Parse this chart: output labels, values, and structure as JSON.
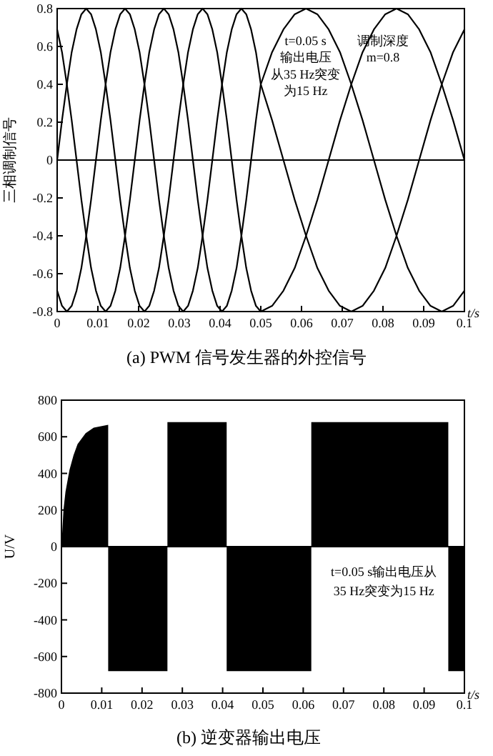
{
  "chart_data": [
    {
      "type": "line",
      "title": "(a)  PWM 信号发生器的外控信号",
      "ylabel": "三相调制信号",
      "xlabel": "t/s",
      "annotations": [
        "t=0.05 s",
        "输出电压",
        "从35 Hz突变",
        "为15 Hz",
        "调制深度",
        "m=0.8"
      ],
      "x": [
        0,
        0.00119,
        0.00238,
        0.00357,
        0.00476,
        0.00595,
        0.00714,
        0.00833,
        0.00952,
        0.01071,
        0.0119,
        0.0131,
        0.01429,
        0.01548,
        0.01667,
        0.01786,
        0.01905,
        0.02024,
        0.02143,
        0.02262,
        0.02381,
        0.025,
        0.02619,
        0.02738,
        0.02857,
        0.02976,
        0.03095,
        0.03214,
        0.03333,
        0.03452,
        0.03571,
        0.0369,
        0.0381,
        0.03929,
        0.04048,
        0.04167,
        0.04286,
        0.04405,
        0.04524,
        0.04643,
        0.04762,
        0.04881,
        0.05,
        0.05278,
        0.05556,
        0.05833,
        0.06111,
        0.06389,
        0.06667,
        0.06944,
        0.07222,
        0.075,
        0.07778,
        0.08056,
        0.08333,
        0.08611,
        0.08889,
        0.09167,
        0.09444,
        0.09722,
        0.1
      ],
      "series": [
        {
          "color": "#000000",
          "values": [
            0,
            0.21,
            0.4,
            0.57,
            0.69,
            0.77,
            0.8,
            0.77,
            0.69,
            0.57,
            0.4,
            0.21,
            0,
            -0.21,
            -0.4,
            -0.57,
            -0.69,
            -0.77,
            -0.8,
            -0.77,
            -0.69,
            -0.57,
            -0.4,
            -0.21,
            0,
            0.21,
            0.4,
            0.57,
            0.69,
            0.77,
            0.8,
            0.77,
            0.69,
            0.57,
            0.4,
            0.21,
            0,
            -0.21,
            -0.4,
            -0.57,
            -0.69,
            -0.77,
            -0.8,
            -0.77,
            -0.69,
            -0.57,
            -0.4,
            -0.21,
            0,
            0.21,
            0.4,
            0.57,
            0.69,
            0.77,
            0.8,
            0.77,
            0.69,
            0.57,
            0.4,
            0.21,
            0
          ]
        },
        {
          "color": "#000000",
          "values": [
            -0.69,
            -0.77,
            -0.8,
            -0.77,
            -0.69,
            -0.57,
            -0.4,
            -0.21,
            0,
            0.21,
            0.4,
            0.57,
            0.69,
            0.77,
            0.8,
            0.77,
            0.69,
            0.57,
            0.4,
            0.21,
            0,
            -0.21,
            -0.4,
            -0.57,
            -0.69,
            -0.77,
            -0.8,
            -0.77,
            -0.69,
            -0.57,
            -0.4,
            -0.21,
            0,
            0.21,
            0.4,
            0.57,
            0.69,
            0.77,
            0.8,
            0.77,
            0.69,
            0.57,
            0.4,
            0.21,
            0,
            -0.21,
            -0.4,
            -0.57,
            -0.69,
            -0.77,
            -0.8,
            -0.77,
            -0.69,
            -0.57,
            -0.4,
            -0.21,
            0,
            0.21,
            0.4,
            0.57,
            0.69
          ]
        },
        {
          "color": "#000000",
          "values": [
            0.69,
            0.57,
            0.4,
            0.21,
            0,
            -0.21,
            -0.4,
            -0.57,
            -0.69,
            -0.77,
            -0.8,
            -0.77,
            -0.69,
            -0.57,
            -0.4,
            -0.21,
            0,
            0.21,
            0.4,
            0.57,
            0.69,
            0.77,
            0.8,
            0.77,
            0.69,
            0.57,
            0.4,
            0.21,
            0,
            -0.21,
            -0.4,
            -0.57,
            -0.69,
            -0.77,
            -0.8,
            -0.77,
            -0.69,
            -0.57,
            -0.4,
            -0.21,
            0,
            0.21,
            0.4,
            0.57,
            0.69,
            0.77,
            0.8,
            0.77,
            0.69,
            0.57,
            0.4,
            0.21,
            0,
            -0.21,
            -0.4,
            -0.57,
            -0.69,
            -0.77,
            -0.8,
            -0.77,
            -0.69
          ]
        }
      ],
      "xlim": [
        0,
        0.1
      ],
      "xticks": [
        0,
        0.01,
        0.02,
        0.03,
        0.04,
        0.05,
        0.06,
        0.07,
        0.08,
        0.09,
        0.1
      ],
      "ylim": [
        -0.8,
        0.8
      ],
      "yticks": [
        -0.8,
        -0.6,
        -0.4,
        -0.2,
        0,
        0.2,
        0.4,
        0.6,
        0.8
      ],
      "ref_lines": [
        {
          "axis": "y",
          "value": 0
        }
      ]
    },
    {
      "type": "area",
      "title": "(b)  逆变器输出电压",
      "ylabel": "U/V",
      "xlabel": "t/s",
      "annotations": [
        "t=0.05 s输出电压从",
        "35 Hz突变为15 Hz"
      ],
      "x": [
        0,
        0.0005,
        0.001,
        0.002,
        0.003,
        0.004,
        0.006,
        0.008,
        0.0116,
        0.0116,
        0.0263,
        0.0263,
        0.041,
        0.041,
        0.062,
        0.062,
        0.096,
        0.096,
        0.1
      ],
      "series": [
        {
          "color": "#000000",
          "values": [
            0,
            200,
            300,
            420,
            500,
            560,
            620,
            650,
            665,
            -680,
            -680,
            680,
            680,
            -680,
            -680,
            680,
            680,
            -680,
            -680
          ]
        }
      ],
      "xlim": [
        0,
        0.1
      ],
      "xticks": [
        0,
        0.01,
        0.02,
        0.03,
        0.04,
        0.05,
        0.06,
        0.07,
        0.08,
        0.09,
        0.1
      ],
      "ylim": [
        -800,
        800
      ],
      "yticks": [
        -800,
        -600,
        -400,
        -200,
        0,
        200,
        400,
        600,
        800
      ],
      "ref_lines": [
        {
          "axis": "y",
          "value": 0
        }
      ]
    }
  ]
}
